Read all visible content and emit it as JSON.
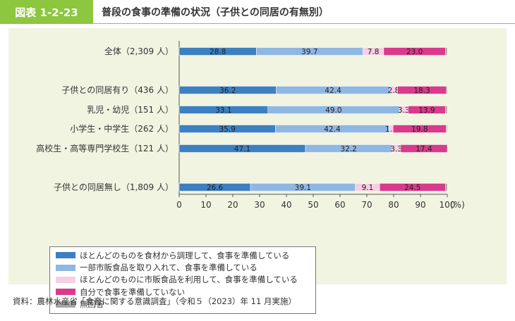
{
  "header": {
    "badge": "図表 1-2-23",
    "title": "普段の食事の準備の状況（子供との同居の有無別）"
  },
  "colors": {
    "badge_bg": "#8dc63f",
    "panel_bg": "#f1f4e1",
    "series": [
      "#3d80c1",
      "#8fb7e3",
      "#f6cfe1",
      "#d93a8c",
      "#a6a6a6"
    ]
  },
  "chart_data": {
    "type": "bar",
    "orientation": "horizontal",
    "stacked": true,
    "categories": [
      "全体（2,309 人）",
      "子供との同居有り（436 人）",
      "乳児・幼児（151 人）",
      "小学生・中学生（262 人）",
      "高校生・高等専門学校生（121 人）",
      "子供との同居無し（1,809 人）"
    ],
    "series": [
      {
        "name": "ほとんどのものを食材から調理して、食事を準備している",
        "values": [
          28.8,
          36.2,
          33.1,
          35.9,
          47.1,
          26.6
        ]
      },
      {
        "name": "一部市販食品を取り入れて、食事を準備している",
        "values": [
          39.7,
          42.4,
          49.0,
          42.4,
          32.2,
          39.1
        ]
      },
      {
        "name": "ほとんどのものに市販食品を利用して、食事を準備している",
        "values": [
          7.8,
          2.8,
          3.3,
          1.5,
          3.3,
          9.1
        ]
      },
      {
        "name": "自分で食事を準備していない",
        "values": [
          23.0,
          18.3,
          13.9,
          19.8,
          17.4,
          24.5
        ]
      },
      {
        "name": "無回答",
        "values": [
          0.7,
          0.3,
          0.7,
          0.4,
          0.0,
          0.7
        ]
      }
    ],
    "value_labels": [
      [
        "28.8",
        "39.7",
        "7.8",
        "23.0"
      ],
      [
        "36.2",
        "42.4",
        "2.8",
        "18.3"
      ],
      [
        "33.1",
        "49.0",
        "3.3",
        "13.9"
      ],
      [
        "35.9",
        "42.4",
        "1.5",
        "19.8"
      ],
      [
        "47.1",
        "32.2",
        "3.3",
        "17.4"
      ],
      [
        "26.6",
        "39.1",
        "9.1",
        "24.5"
      ]
    ],
    "x_ticks": [
      "0",
      "10",
      "20",
      "30",
      "40",
      "50",
      "60",
      "70",
      "80",
      "90",
      "100"
    ],
    "x_unit": "(%)",
    "xlim": [
      0,
      100
    ],
    "legend_position": "bottom-left"
  },
  "source": "資料：農林水産省「食育に関する意識調査」（令和５（2023）年 11 月実施）"
}
